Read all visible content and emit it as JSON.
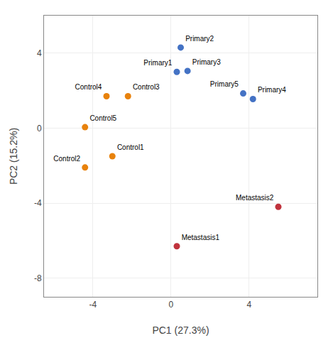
{
  "chart_data": {
    "type": "scatter",
    "xlabel": "PC1 (27.3%)",
    "ylabel": "PC2 (15.2%)",
    "labels": [
      "Primary1",
      "Primary2",
      "Primary3",
      "Primary4",
      "Primary5",
      "Control1",
      "Control2",
      "Control3",
      "Control4",
      "Control5",
      "Metastasis1",
      "Metastasis2"
    ],
    "x": [
      0.3,
      0.5,
      0.85,
      4.2,
      3.7,
      -3.0,
      -4.4,
      -2.2,
      -3.3,
      -4.4,
      0.3,
      5.5
    ],
    "values": [
      3.0,
      4.3,
      3.05,
      1.55,
      1.85,
      -1.5,
      -2.1,
      1.7,
      1.7,
      0.05,
      -6.3,
      -4.2
    ],
    "colors": [
      "#4472c4",
      "#4472c4",
      "#4472c4",
      "#4472c4",
      "#4472c4",
      "#e8820c",
      "#e8820c",
      "#e8820c",
      "#e8820c",
      "#e8820c",
      "#c0323c",
      "#c0323c"
    ],
    "marker": "circle",
    "xlim": [
      -6.5,
      7.5
    ],
    "ylim": [
      -9.0,
      6.0
    ],
    "xticks": [
      -4,
      0,
      4
    ],
    "yticks": [
      -8,
      -4,
      0,
      4
    ],
    "grid": true
  }
}
